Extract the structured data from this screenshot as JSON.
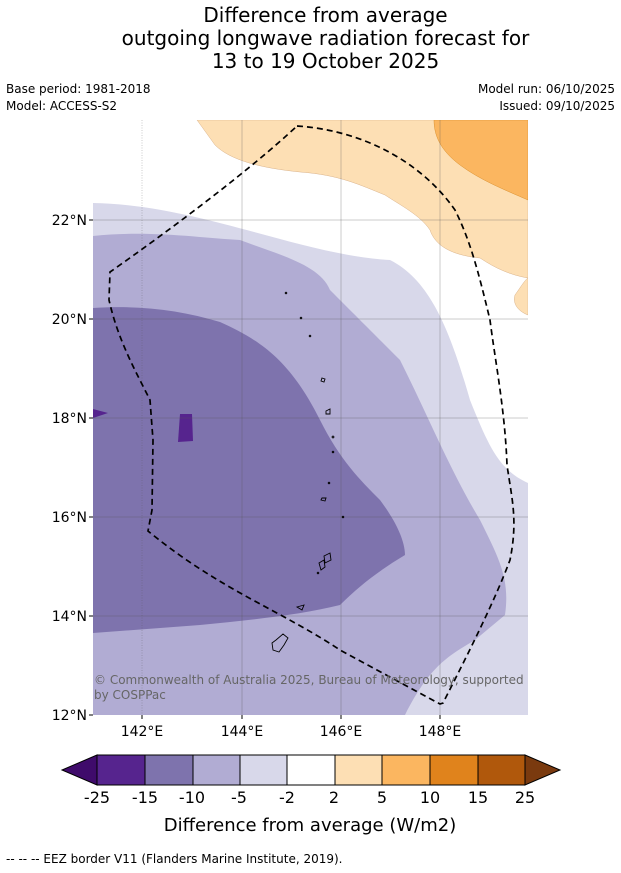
{
  "header": {
    "title_lines": [
      "Difference from average",
      "outgoing longwave radiation forecast for",
      "13 to 19 October 2025"
    ],
    "base_period": "Base period: 1981-2018",
    "model": "Model: ACCESS-S2",
    "model_run": "Model run: 06/10/2025",
    "issued": "Issued: 09/10/2025"
  },
  "map": {
    "lat_labels": [
      "22°N",
      "20°N",
      "18°N",
      "16°N",
      "14°N",
      "12°N"
    ],
    "lon_labels": [
      "142°E",
      "144°E",
      "146°E",
      "148°E"
    ],
    "copyright": "© Commonwealth of Australia 2025, Bureau of Meteorology, supported by COSPPac",
    "copyright_line1": "© Commonwealth of Australia 2025, Bureau of Meteorology, supported",
    "copyright_line2": "by COSPPac"
  },
  "colorbar": {
    "ticks": [
      "-25",
      "-15",
      "-10",
      "-5",
      "-2",
      "2",
      "5",
      "10",
      "15",
      "25"
    ],
    "colors": [
      "#3f0b6b",
      "#56248e",
      "#7e73ad",
      "#b1acd3",
      "#d8d8ea",
      "#ffffff",
      "#fddfb4",
      "#fbb660",
      "#e0831c",
      "#b0580c",
      "#7a3a0f"
    ],
    "label": "Difference from average (W/m2)"
  },
  "footer": {
    "legend_text": "--  --  -- EEZ border V11 (Flanders Marine Institute, 2019)."
  }
}
